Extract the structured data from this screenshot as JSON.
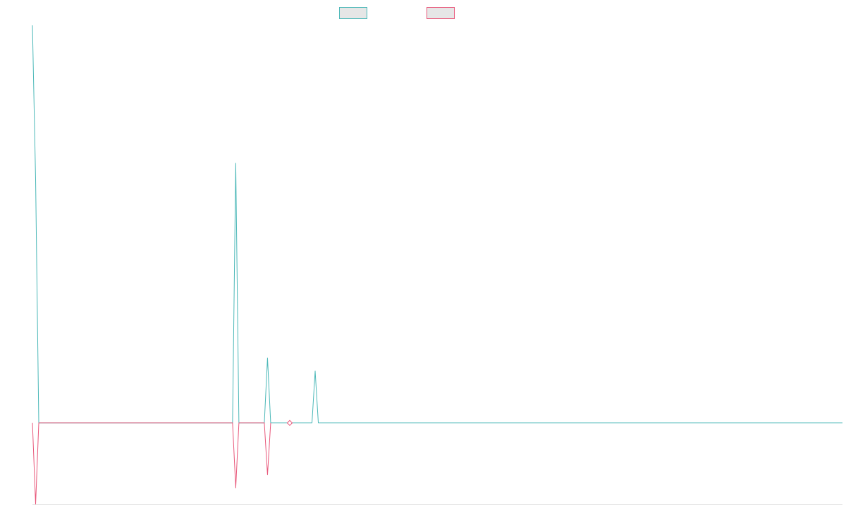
{
  "chart_data": {
    "type": "line",
    "title": "",
    "xlabel": "",
    "ylabel": "",
    "legend": {
      "placement": "top-center"
    },
    "grid": false,
    "x_count": 256,
    "xlim": [
      0,
      255
    ],
    "ylim": [
      -0.5,
      2.45
    ],
    "series": [
      {
        "color": "#4bb8b8",
        "values_at": [
          {
            "x": 0,
            "y": 2.45
          },
          {
            "x": 1,
            "y": 1.5
          },
          {
            "x": 2,
            "y": 0
          },
          {
            "x": 63,
            "y": 0
          },
          {
            "x": 64,
            "y": 1.6
          },
          {
            "x": 65,
            "y": 0
          },
          {
            "x": 73,
            "y": 0
          },
          {
            "x": 74,
            "y": 0.4
          },
          {
            "x": 75,
            "y": 0
          },
          {
            "x": 88,
            "y": 0
          },
          {
            "x": 89,
            "y": 0.32
          },
          {
            "x": 90,
            "y": 0
          }
        ]
      },
      {
        "color": "#e8577a",
        "values_at": [
          {
            "x": 0,
            "y": 0
          },
          {
            "x": 1,
            "y": -0.5
          },
          {
            "x": 2,
            "y": 0
          },
          {
            "x": 63,
            "y": 0
          },
          {
            "x": 64,
            "y": -0.4
          },
          {
            "x": 65,
            "y": 0
          },
          {
            "x": 73,
            "y": 0
          },
          {
            "x": 74,
            "y": -0.32
          },
          {
            "x": 75,
            "y": 0
          }
        ]
      }
    ],
    "markers": [
      {
        "series": 1,
        "x": 81,
        "y": 0,
        "shape": "diamond"
      }
    ]
  }
}
